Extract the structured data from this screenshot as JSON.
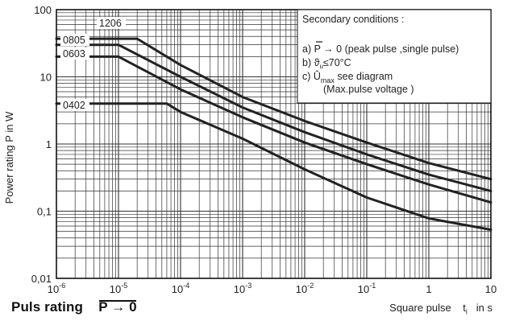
{
  "chart_data": {
    "type": "line",
    "title": "Puls rating",
    "title_condition": "P → 0",
    "xlabel": "Square pulse",
    "xlabel_var": "t",
    "xlabel_sub": "i",
    "xlabel_unit": "in  s",
    "ylabel": "Power rating  P in W",
    "x_scale": "log",
    "y_scale": "log",
    "xlim": [
      1e-06,
      10
    ],
    "ylim": [
      0.01,
      100
    ],
    "grid": true,
    "x_tick_labels": [
      {
        "value": 1e-06,
        "mant": "10",
        "exp": "-6"
      },
      {
        "value": 1e-05,
        "mant": "10",
        "exp": "-5"
      },
      {
        "value": 0.0001,
        "mant": "10",
        "exp": "-4"
      },
      {
        "value": 0.001,
        "mant": "10",
        "exp": "-3"
      },
      {
        "value": 0.01,
        "mant": "10",
        "exp": "-2"
      },
      {
        "value": 0.1,
        "mant": "10",
        "exp": "-1"
      },
      {
        "value": 1,
        "mant": "1",
        "exp": ""
      },
      {
        "value": 10,
        "mant": "10",
        "exp": ""
      }
    ],
    "y_tick_labels": [
      {
        "value": 100,
        "label": "100"
      },
      {
        "value": 10,
        "label": "10"
      },
      {
        "value": 1,
        "label": "1"
      },
      {
        "value": 0.1,
        "label": "0,1"
      },
      {
        "value": 0.01,
        "label": "0,01"
      }
    ],
    "series": [
      {
        "name": "1206",
        "points": [
          [
            1e-06,
            37
          ],
          [
            2e-05,
            37
          ],
          [
            0.0001,
            15
          ],
          [
            0.001,
            5
          ],
          [
            0.01,
            2.2
          ],
          [
            0.1,
            1.05
          ],
          [
            1,
            0.52
          ],
          [
            10,
            0.3
          ]
        ]
      },
      {
        "name": "0805",
        "points": [
          [
            1e-06,
            30
          ],
          [
            1e-05,
            30
          ],
          [
            0.0001,
            10
          ],
          [
            0.001,
            3.5
          ],
          [
            0.01,
            1.5
          ],
          [
            0.1,
            0.7
          ],
          [
            1,
            0.35
          ],
          [
            10,
            0.2
          ]
        ]
      },
      {
        "name": "0603",
        "points": [
          [
            1e-06,
            20
          ],
          [
            1e-05,
            20
          ],
          [
            0.0001,
            6.5
          ],
          [
            0.001,
            2.5
          ],
          [
            0.01,
            1.05
          ],
          [
            0.1,
            0.5
          ],
          [
            1,
            0.25
          ],
          [
            10,
            0.135
          ]
        ]
      },
      {
        "name": "0402",
        "points": [
          [
            1e-06,
            4
          ],
          [
            6e-05,
            4
          ],
          [
            0.0001,
            3
          ],
          [
            0.001,
            1.2
          ],
          [
            0.01,
            0.42
          ],
          [
            0.1,
            0.16
          ],
          [
            1,
            0.078
          ],
          [
            10,
            0.053
          ]
        ]
      }
    ],
    "legend_title": "Secondary conditions :",
    "legend_lines": [
      "a) P → 0 (peak pulse ,single pulse)",
      "b) ϑu ≤ 70°C",
      "c) Ûmax see diagram",
      "(Max.pulse voltage )"
    ],
    "legend_parts": {
      "a_prefix": "a) ",
      "a_P": "P",
      "a_text": "→ 0 (peak pulse ,single pulse)",
      "b_prefix": "b) ",
      "b_var": "ϑ",
      "b_sub": "u",
      "b_text": "≤70°C",
      "c_prefix": "c) ",
      "c_var": "Û",
      "c_sub": "max",
      "c_text": " see diagram",
      "c_line2": "(Max.pulse voltage )"
    },
    "legend_placement": "top-right",
    "colors": {
      "lines": "#222222",
      "grid": "#333333",
      "background": "#ffffff"
    }
  }
}
